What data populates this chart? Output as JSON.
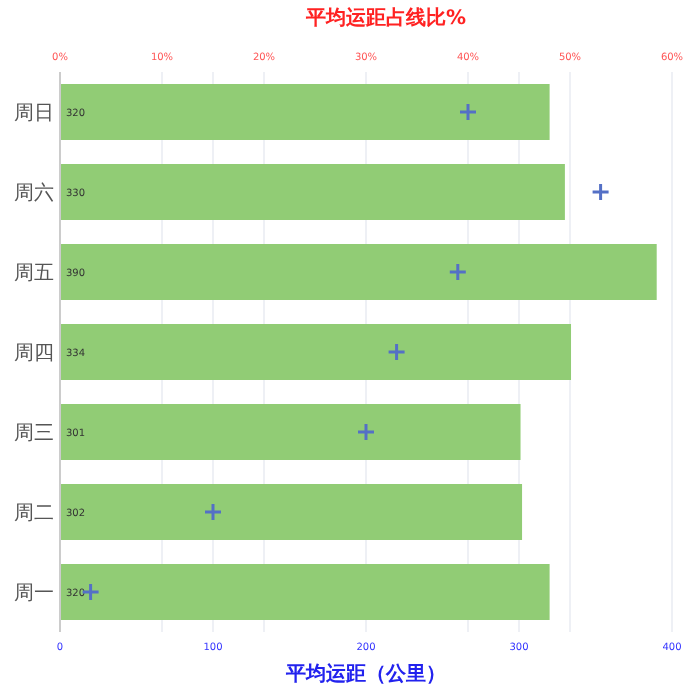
{
  "chart_data": {
    "type": "bar",
    "orientation": "horizontal",
    "x2label": "平均运距占线比%",
    "xlabel": "平均运距（公里）",
    "categories": [
      "周日",
      "周六",
      "周五",
      "周四",
      "周三",
      "周二",
      "周一"
    ],
    "series": [
      {
        "color": "#91cc75",
        "values": [
          320,
          330,
          390,
          334,
          301,
          302,
          320
        ],
        "value_labels": [
          "320",
          "330",
          "390",
          "334",
          "301",
          "302",
          "320"
        ]
      },
      {
        "type": "scatter",
        "axis": "x2",
        "color": "#5470c6",
        "marker": "cross",
        "values": [
          40,
          53,
          39,
          33,
          30,
          15,
          3
        ]
      }
    ],
    "xlim": [
      0,
      400
    ],
    "xticks": [
      0,
      100,
      200,
      300,
      400
    ],
    "x2lim": [
      0,
      60
    ],
    "x2ticks": [
      {
        "value": 0,
        "label": "0%"
      },
      {
        "value": 10,
        "label": "10%"
      },
      {
        "value": 20,
        "label": "20%"
      },
      {
        "value": 30,
        "label": "30%"
      },
      {
        "value": 40,
        "label": "40%"
      },
      {
        "value": 50,
        "label": "50%"
      },
      {
        "value": 60,
        "label": "60%"
      }
    ],
    "grid": true
  }
}
